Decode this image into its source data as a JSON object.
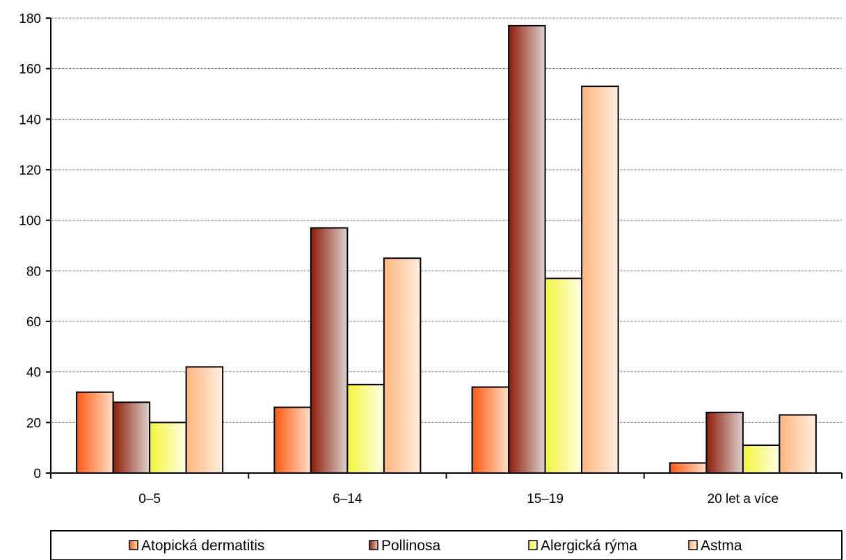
{
  "chart_data": {
    "type": "bar",
    "categories": [
      "0–5",
      "6–14",
      "15–19",
      "20 let a více"
    ],
    "series": [
      {
        "name": "Atopická dermatitis",
        "values": [
          32,
          26,
          34,
          4
        ],
        "colors": [
          "#ff5a14",
          "#ffe0c8"
        ]
      },
      {
        "name": "Pollinosa",
        "values": [
          28,
          97,
          177,
          24
        ],
        "colors": [
          "#8c1c08",
          "#ddd3cf"
        ]
      },
      {
        "name": "Alergická rýma",
        "values": [
          20,
          35,
          77,
          11
        ],
        "colors": [
          "#f4f43c",
          "#ffffe8"
        ]
      },
      {
        "name": "Astma",
        "values": [
          42,
          85,
          153,
          23
        ],
        "colors": [
          "#ffb47c",
          "#fff0e2"
        ]
      }
    ],
    "ylim": [
      0,
      180
    ],
    "yticks": [
      0,
      20,
      40,
      60,
      80,
      100,
      120,
      140,
      160,
      180
    ],
    "grid": true,
    "legend_position": "bottom"
  }
}
